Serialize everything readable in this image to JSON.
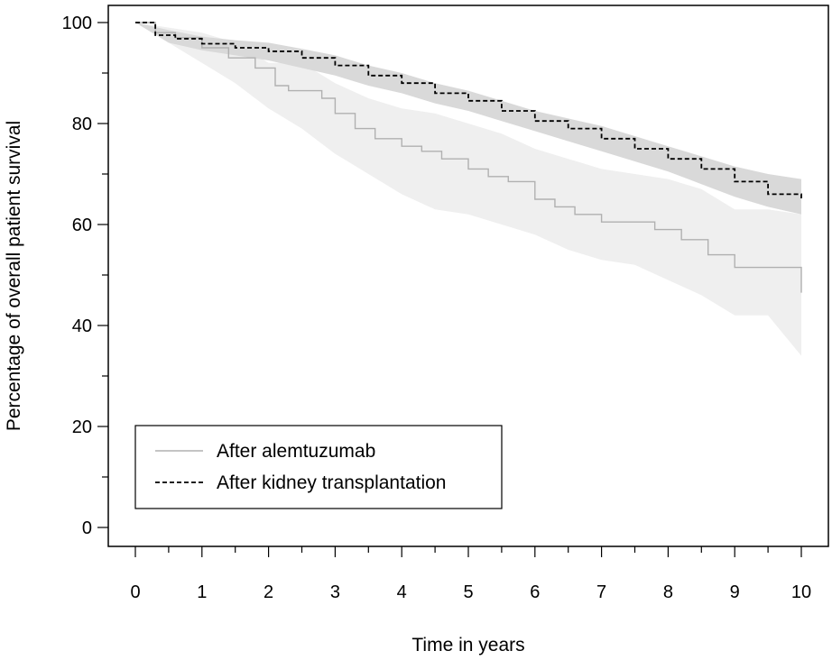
{
  "chart_data": {
    "type": "line",
    "title": "",
    "xlabel": "Time in years",
    "ylabel": "Percentage of overall patient survival",
    "xlim": [
      0,
      10
    ],
    "ylim": [
      0,
      100
    ],
    "x_ticks": [
      "0",
      "1",
      "2",
      "3",
      "4",
      "5",
      "6",
      "7",
      "8",
      "9",
      "10"
    ],
    "y_ticks": [
      "0",
      "20",
      "40",
      "60",
      "80",
      "100"
    ],
    "grid": false,
    "legend_position": "bottom-left",
    "series": [
      {
        "name": "After alemtuzumab",
        "style": "solid",
        "color": "#b0b0b0",
        "band_color": "#efefef",
        "points": [
          [
            0,
            100
          ],
          [
            0.3,
            98
          ],
          [
            0.6,
            97
          ],
          [
            1,
            95
          ],
          [
            1.4,
            93
          ],
          [
            1.8,
            91
          ],
          [
            2.1,
            87.5
          ],
          [
            2.3,
            86.5
          ],
          [
            2.6,
            86.5
          ],
          [
            2.8,
            85
          ],
          [
            3,
            82
          ],
          [
            3.3,
            79
          ],
          [
            3.6,
            77
          ],
          [
            4,
            75.5
          ],
          [
            4.3,
            74.5
          ],
          [
            4.6,
            73
          ],
          [
            5,
            71
          ],
          [
            5.3,
            69.5
          ],
          [
            5.6,
            68.5
          ],
          [
            6,
            65
          ],
          [
            6.3,
            63.5
          ],
          [
            6.6,
            62
          ],
          [
            7,
            60.5
          ],
          [
            7.4,
            60.5
          ],
          [
            7.8,
            59
          ],
          [
            8.2,
            57
          ],
          [
            8.6,
            54
          ],
          [
            9,
            51.5
          ],
          [
            9.5,
            51.5
          ],
          [
            10,
            46.5
          ]
        ],
        "ci_lower": [
          [
            0,
            100
          ],
          [
            0.5,
            96
          ],
          [
            1,
            92
          ],
          [
            1.5,
            88
          ],
          [
            2,
            83
          ],
          [
            2.5,
            79
          ],
          [
            3,
            74
          ],
          [
            3.5,
            70
          ],
          [
            4,
            66
          ],
          [
            4.5,
            63
          ],
          [
            5,
            62
          ],
          [
            5.5,
            60
          ],
          [
            6,
            58
          ],
          [
            6.5,
            55
          ],
          [
            7,
            53
          ],
          [
            7.5,
            52
          ],
          [
            8,
            49
          ],
          [
            8.5,
            46
          ],
          [
            9,
            42
          ],
          [
            9.5,
            42
          ],
          [
            10,
            34
          ]
        ],
        "ci_upper": [
          [
            0,
            100
          ],
          [
            0.5,
            99
          ],
          [
            1,
            98
          ],
          [
            1.5,
            96
          ],
          [
            2,
            92
          ],
          [
            2.5,
            92
          ],
          [
            3,
            88
          ],
          [
            3.5,
            85
          ],
          [
            4,
            83
          ],
          [
            4.5,
            82
          ],
          [
            5,
            80
          ],
          [
            5.5,
            78
          ],
          [
            6,
            75
          ],
          [
            6.5,
            73
          ],
          [
            7,
            71
          ],
          [
            7.5,
            70
          ],
          [
            8,
            69
          ],
          [
            8.5,
            67
          ],
          [
            9,
            63
          ],
          [
            9.5,
            63
          ],
          [
            10,
            62
          ]
        ]
      },
      {
        "name": "After kidney transplantation",
        "style": "dashed",
        "color": "#000000",
        "band_color": "#d9d9d9",
        "points": [
          [
            0,
            100
          ],
          [
            0.3,
            97.5
          ],
          [
            0.6,
            96.8
          ],
          [
            1,
            95.8
          ],
          [
            1.5,
            95
          ],
          [
            2,
            94.3
          ],
          [
            2.5,
            93
          ],
          [
            3,
            91.5
          ],
          [
            3.5,
            89.5
          ],
          [
            4,
            88
          ],
          [
            4.5,
            86
          ],
          [
            5,
            84.5
          ],
          [
            5.5,
            82.5
          ],
          [
            6,
            80.5
          ],
          [
            6.5,
            79
          ],
          [
            7,
            77
          ],
          [
            7.5,
            75
          ],
          [
            8,
            73
          ],
          [
            8.5,
            71
          ],
          [
            9,
            68.5
          ],
          [
            9.5,
            66
          ],
          [
            10,
            65
          ]
        ],
        "ci_lower": [
          [
            0,
            100
          ],
          [
            0.5,
            96
          ],
          [
            1,
            94.5
          ],
          [
            1.5,
            93.5
          ],
          [
            2,
            92.5
          ],
          [
            2.5,
            91
          ],
          [
            3,
            89.5
          ],
          [
            3.5,
            87.5
          ],
          [
            4,
            86
          ],
          [
            4.5,
            84
          ],
          [
            5,
            82.5
          ],
          [
            5.5,
            80.5
          ],
          [
            6,
            78.5
          ],
          [
            6.5,
            76.5
          ],
          [
            7,
            74.5
          ],
          [
            7.5,
            72.5
          ],
          [
            8,
            70.5
          ],
          [
            8.5,
            68
          ],
          [
            9,
            65.5
          ],
          [
            9.5,
            63.5
          ],
          [
            10,
            62
          ]
        ],
        "ci_upper": [
          [
            0,
            100
          ],
          [
            0.5,
            98.5
          ],
          [
            1,
            97.2
          ],
          [
            1.5,
            96.5
          ],
          [
            2,
            96
          ],
          [
            2.5,
            94.8
          ],
          [
            3,
            93.5
          ],
          [
            3.5,
            91.5
          ],
          [
            4,
            90
          ],
          [
            4.5,
            88
          ],
          [
            5,
            86.5
          ],
          [
            5.5,
            84.5
          ],
          [
            6,
            82.5
          ],
          [
            6.5,
            81
          ],
          [
            7,
            79.5
          ],
          [
            7.5,
            77.5
          ],
          [
            8,
            75.5
          ],
          [
            8.5,
            73.5
          ],
          [
            9,
            71.5
          ],
          [
            9.5,
            70
          ],
          [
            10,
            69
          ]
        ]
      }
    ]
  }
}
